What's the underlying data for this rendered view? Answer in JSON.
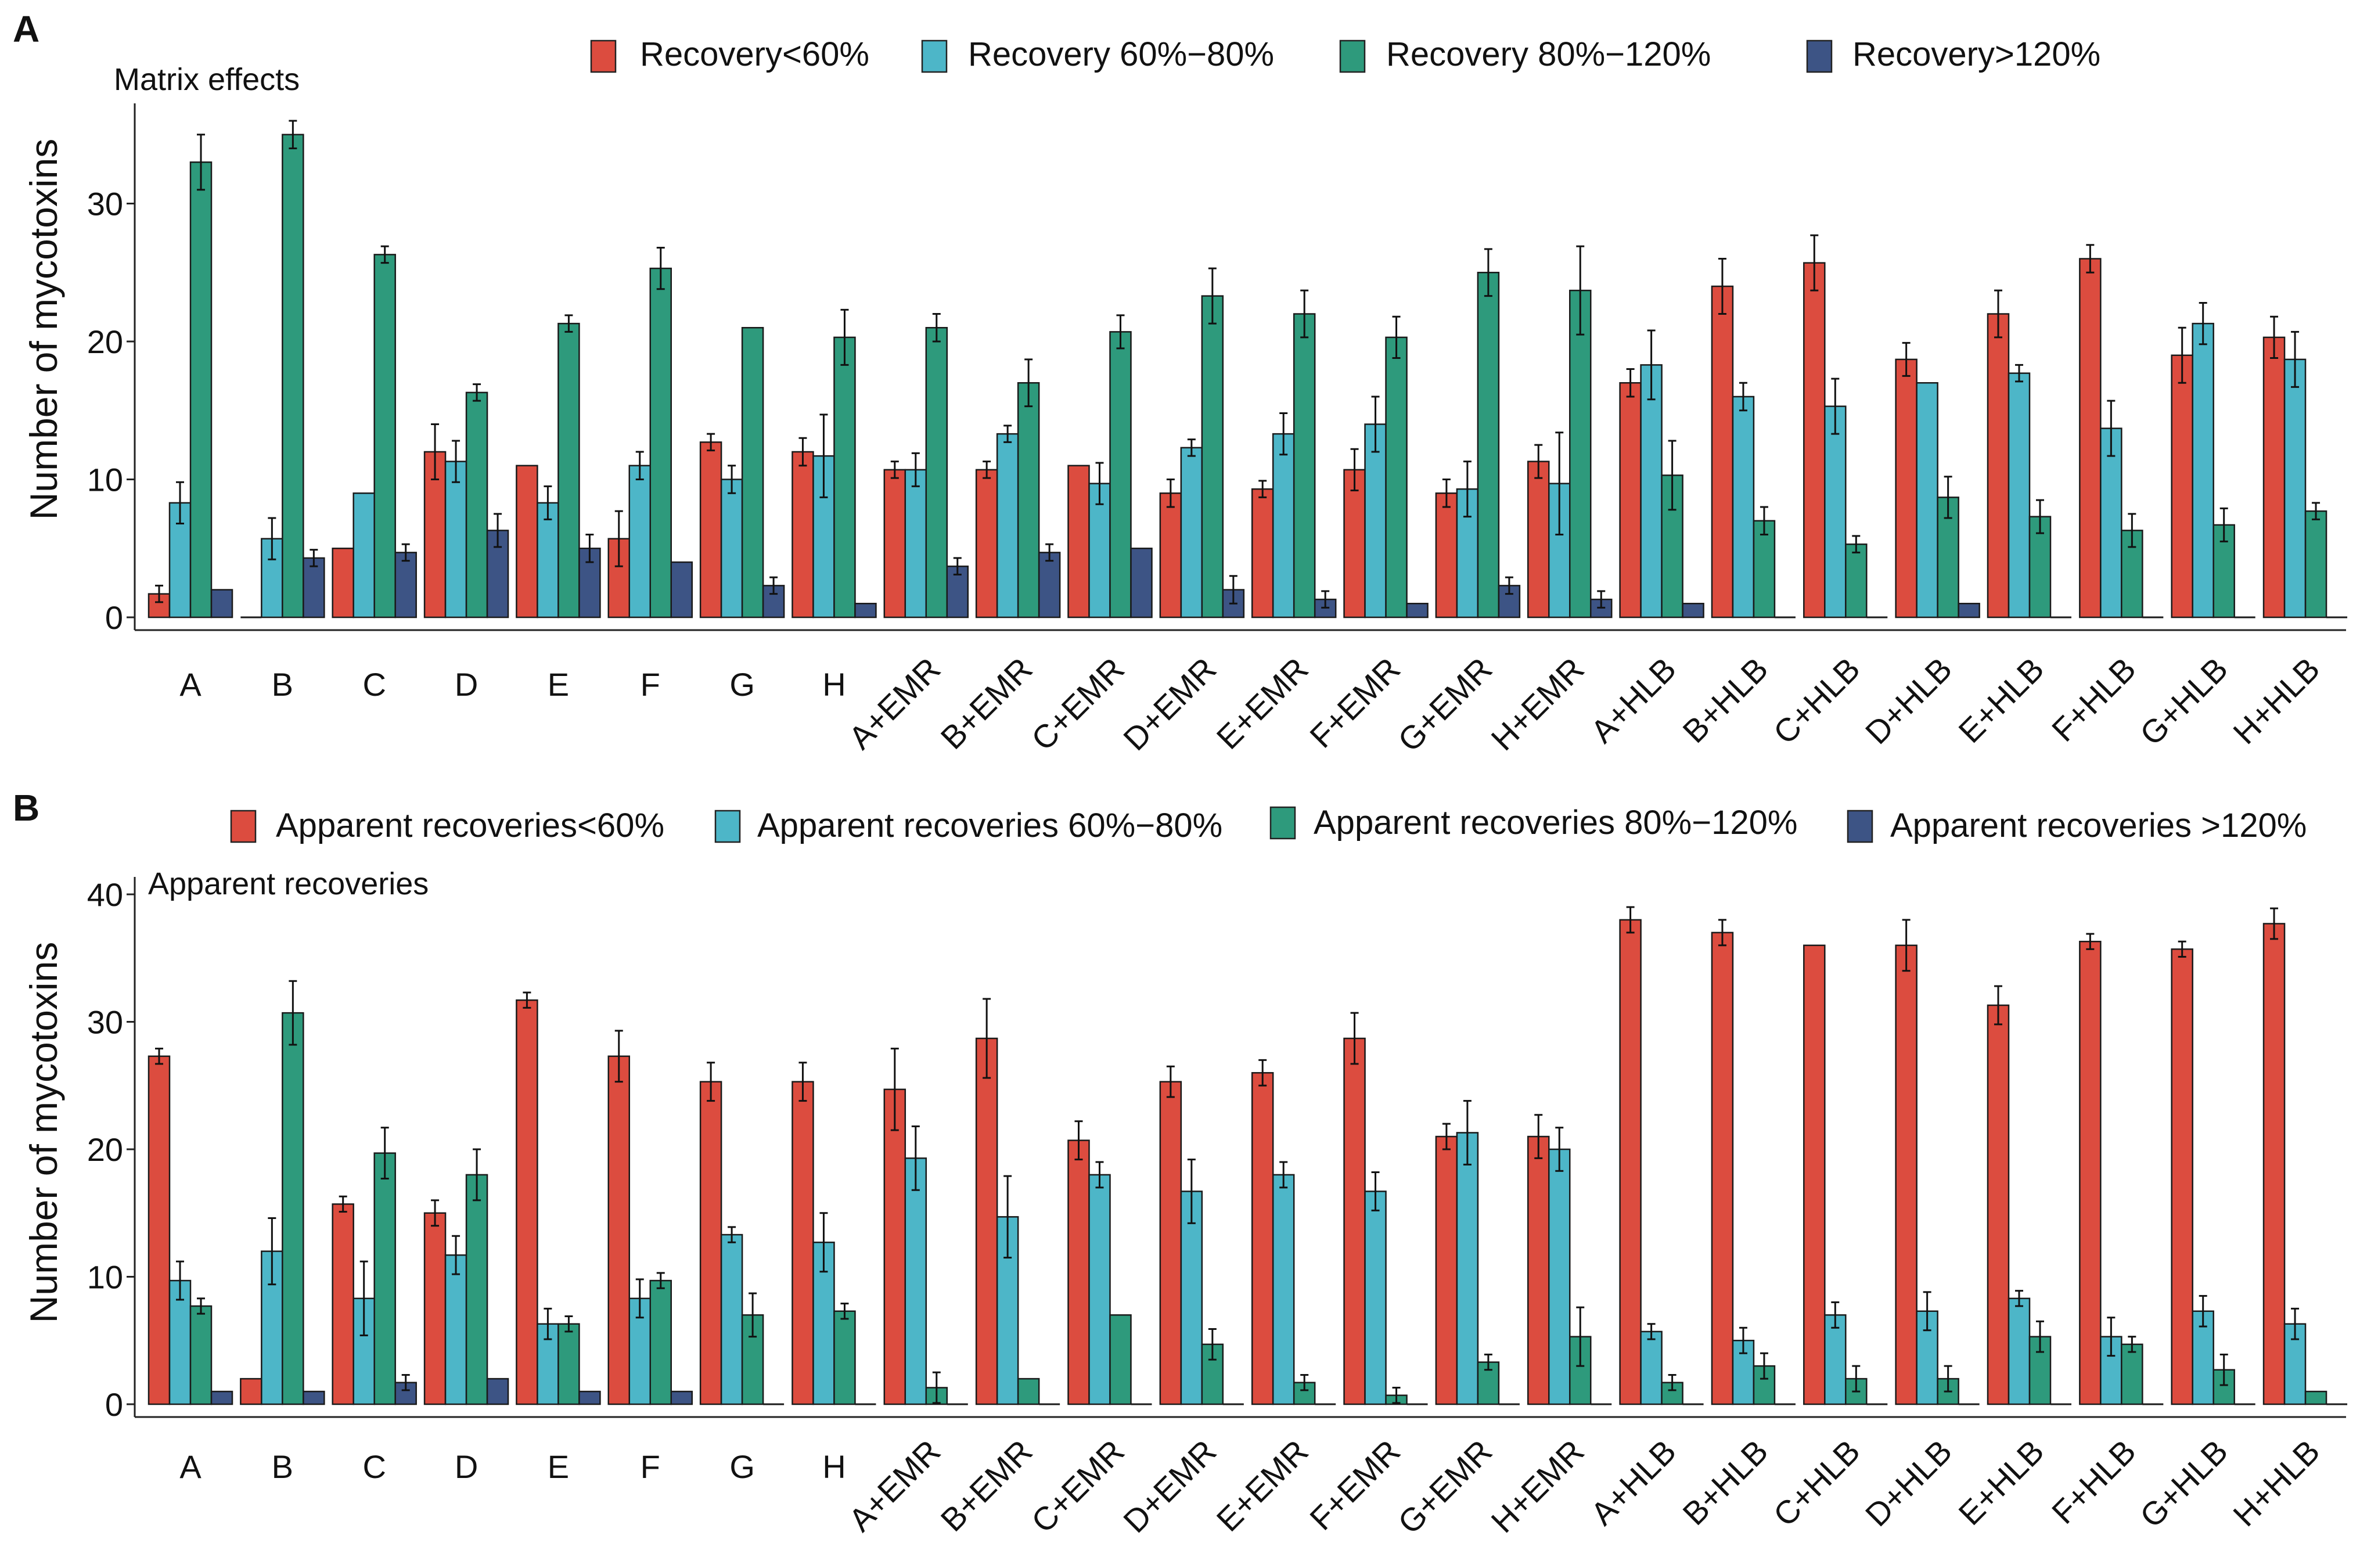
{
  "colors": {
    "lt60": "#dc4c3f",
    "r60_80": "#4db6c8",
    "r80_120": "#2e9a7c",
    "gt120": "#3d5485",
    "axis": "#222222",
    "errorbar": "#111111"
  },
  "chart_data": [
    {
      "type": "bar",
      "panel_label": "A",
      "title": "Matrix effects",
      "xlabel": "",
      "ylabel": "Number of mycotoxins",
      "ylim": [
        0,
        36
      ],
      "yticks": [
        0,
        10,
        20,
        30
      ],
      "categories": [
        "A",
        "B",
        "C",
        "D",
        "E",
        "F",
        "G",
        "H",
        "A+EMR",
        "B+EMR",
        "C+EMR",
        "D+EMR",
        "E+EMR",
        "F+EMR",
        "G+EMR",
        "H+EMR",
        "A+HLB",
        "B+HLB",
        "C+HLB",
        "D+HLB",
        "E+HLB",
        "F+HLB",
        "G+HLB",
        "H+HLB"
      ],
      "series": [
        {
          "name": "Recovery<60%",
          "color_key": "lt60",
          "values": [
            1.7,
            0,
            5,
            12,
            11,
            5.7,
            12.7,
            12,
            10.7,
            10.7,
            11,
            9,
            9.3,
            10.7,
            9,
            11.3,
            17,
            24,
            25.7,
            18.7,
            22,
            26,
            19,
            20.3
          ],
          "errors": [
            0.6,
            0,
            0,
            2,
            0,
            2,
            0.6,
            1,
            0.6,
            0.6,
            0,
            1,
            0.6,
            1.5,
            1,
            1.2,
            1,
            2,
            2,
            1.2,
            1.7,
            1,
            2,
            1.5
          ]
        },
        {
          "name": "Recovery 60%−80%",
          "color_key": "r60_80",
          "values": [
            8.3,
            5.7,
            9,
            11.3,
            8.3,
            11,
            10,
            11.7,
            10.7,
            13.3,
            9.7,
            12.3,
            13.3,
            14,
            9.3,
            9.7,
            18.3,
            16,
            15.3,
            17,
            17.7,
            13.7,
            21.3,
            18.7
          ],
          "errors": [
            1.5,
            1.5,
            0,
            1.5,
            1.2,
            1,
            1,
            3,
            1.2,
            0.6,
            1.5,
            0.6,
            1.5,
            2,
            2,
            3.7,
            2.5,
            1,
            2,
            0,
            0.6,
            2,
            1.5,
            2
          ]
        },
        {
          "name": "Recovery 80%−120%",
          "color_key": "r80_120",
          "values": [
            33,
            35,
            26.3,
            16.3,
            21.3,
            25.3,
            21,
            20.3,
            21,
            17,
            20.7,
            23.3,
            22,
            20.3,
            25,
            23.7,
            10.3,
            7,
            5.3,
            8.7,
            7.3,
            6.3,
            6.7,
            7.7
          ],
          "errors": [
            2,
            1,
            0.6,
            0.6,
            0.6,
            1.5,
            0,
            2,
            1,
            1.7,
            1.2,
            2,
            1.7,
            1.5,
            1.7,
            3.2,
            2.5,
            1,
            0.6,
            1.5,
            1.2,
            1.2,
            1.2,
            0.6
          ]
        },
        {
          "name": "Recovery>120%",
          "color_key": "gt120",
          "values": [
            2,
            4.3,
            4.7,
            6.3,
            5,
            4,
            2.3,
            1,
            3.7,
            4.7,
            5,
            2,
            1.3,
            1,
            2.3,
            1.3,
            1,
            0,
            0,
            1,
            0,
            0,
            0,
            0
          ],
          "errors": [
            0,
            0.6,
            0.6,
            1.2,
            1,
            0,
            0.6,
            0,
            0.6,
            0.6,
            0,
            1,
            0.6,
            0,
            0.6,
            0.6,
            0,
            0,
            0,
            0,
            0,
            0,
            0,
            0
          ]
        }
      ]
    },
    {
      "type": "bar",
      "panel_label": "B",
      "title": "Apparent recoveries",
      "xlabel": "",
      "ylabel": "Number of mycotoxins",
      "ylim": [
        0,
        40
      ],
      "yticks": [
        0,
        10,
        20,
        30,
        40
      ],
      "categories": [
        "A",
        "B",
        "C",
        "D",
        "E",
        "F",
        "G",
        "H",
        "A+EMR",
        "B+EMR",
        "C+EMR",
        "D+EMR",
        "E+EMR",
        "F+EMR",
        "G+EMR",
        "H+EMR",
        "A+HLB",
        "B+HLB",
        "C+HLB",
        "D+HLB",
        "E+HLB",
        "F+HLB",
        "G+HLB",
        "H+HLB"
      ],
      "series": [
        {
          "name": "Apparent recoveries<60%",
          "color_key": "lt60",
          "values": [
            27.3,
            2,
            15.7,
            15,
            31.7,
            27.3,
            25.3,
            25.3,
            24.7,
            28.7,
            20.7,
            25.3,
            26,
            28.7,
            21,
            21,
            38,
            37,
            36,
            36,
            31.3,
            36.3,
            35.7,
            37.7
          ],
          "errors": [
            0.6,
            0,
            0.6,
            1,
            0.6,
            2,
            1.5,
            1.5,
            3.2,
            3.1,
            1.5,
            1.2,
            1,
            2,
            1,
            1.7,
            1,
            1,
            0,
            2,
            1.5,
            0.6,
            0.6,
            1.2
          ]
        },
        {
          "name": "Apparent recoveries 60%−80%",
          "color_key": "r60_80",
          "values": [
            9.7,
            12,
            8.3,
            11.7,
            6.3,
            8.3,
            13.3,
            12.7,
            19.3,
            14.7,
            18,
            16.7,
            18,
            16.7,
            21.3,
            20,
            5.7,
            5,
            7,
            7.3,
            8.3,
            5.3,
            7.3,
            6.3
          ],
          "errors": [
            1.5,
            2.6,
            2.9,
            1.5,
            1.2,
            1.5,
            0.6,
            2.3,
            2.5,
            3.2,
            1,
            2.5,
            1,
            1.5,
            2.5,
            1.7,
            0.6,
            1,
            1,
            1.5,
            0.6,
            1.5,
            1.2,
            1.2
          ]
        },
        {
          "name": "Apparent recoveries 80%−120%",
          "color_key": "r80_120",
          "values": [
            7.7,
            30.7,
            19.7,
            18,
            6.3,
            9.7,
            7,
            7.3,
            1.3,
            2,
            7,
            4.7,
            1.7,
            0.7,
            3.3,
            5.3,
            1.7,
            3,
            2,
            2,
            5.3,
            4.7,
            2.7,
            1
          ],
          "errors": [
            0.6,
            2.5,
            2,
            2,
            0.6,
            0.6,
            1.7,
            0.6,
            1.2,
            0,
            0,
            1.2,
            0.6,
            0.6,
            0.6,
            2.3,
            0.6,
            1,
            1,
            1,
            1.2,
            0.6,
            1.2,
            0
          ]
        },
        {
          "name": "Apparent recoveries >120%",
          "color_key": "gt120",
          "values": [
            1,
            1,
            1.7,
            2,
            1,
            1,
            0,
            0,
            0,
            0,
            0,
            0,
            0,
            0,
            0,
            0,
            0,
            0,
            0,
            0,
            0,
            0,
            0,
            0
          ],
          "errors": [
            0,
            0,
            0.6,
            0,
            0,
            0,
            0,
            0,
            0,
            0,
            0,
            0,
            0,
            0,
            0,
            0,
            0,
            0,
            0,
            0,
            0,
            0,
            0,
            0
          ]
        }
      ]
    }
  ]
}
